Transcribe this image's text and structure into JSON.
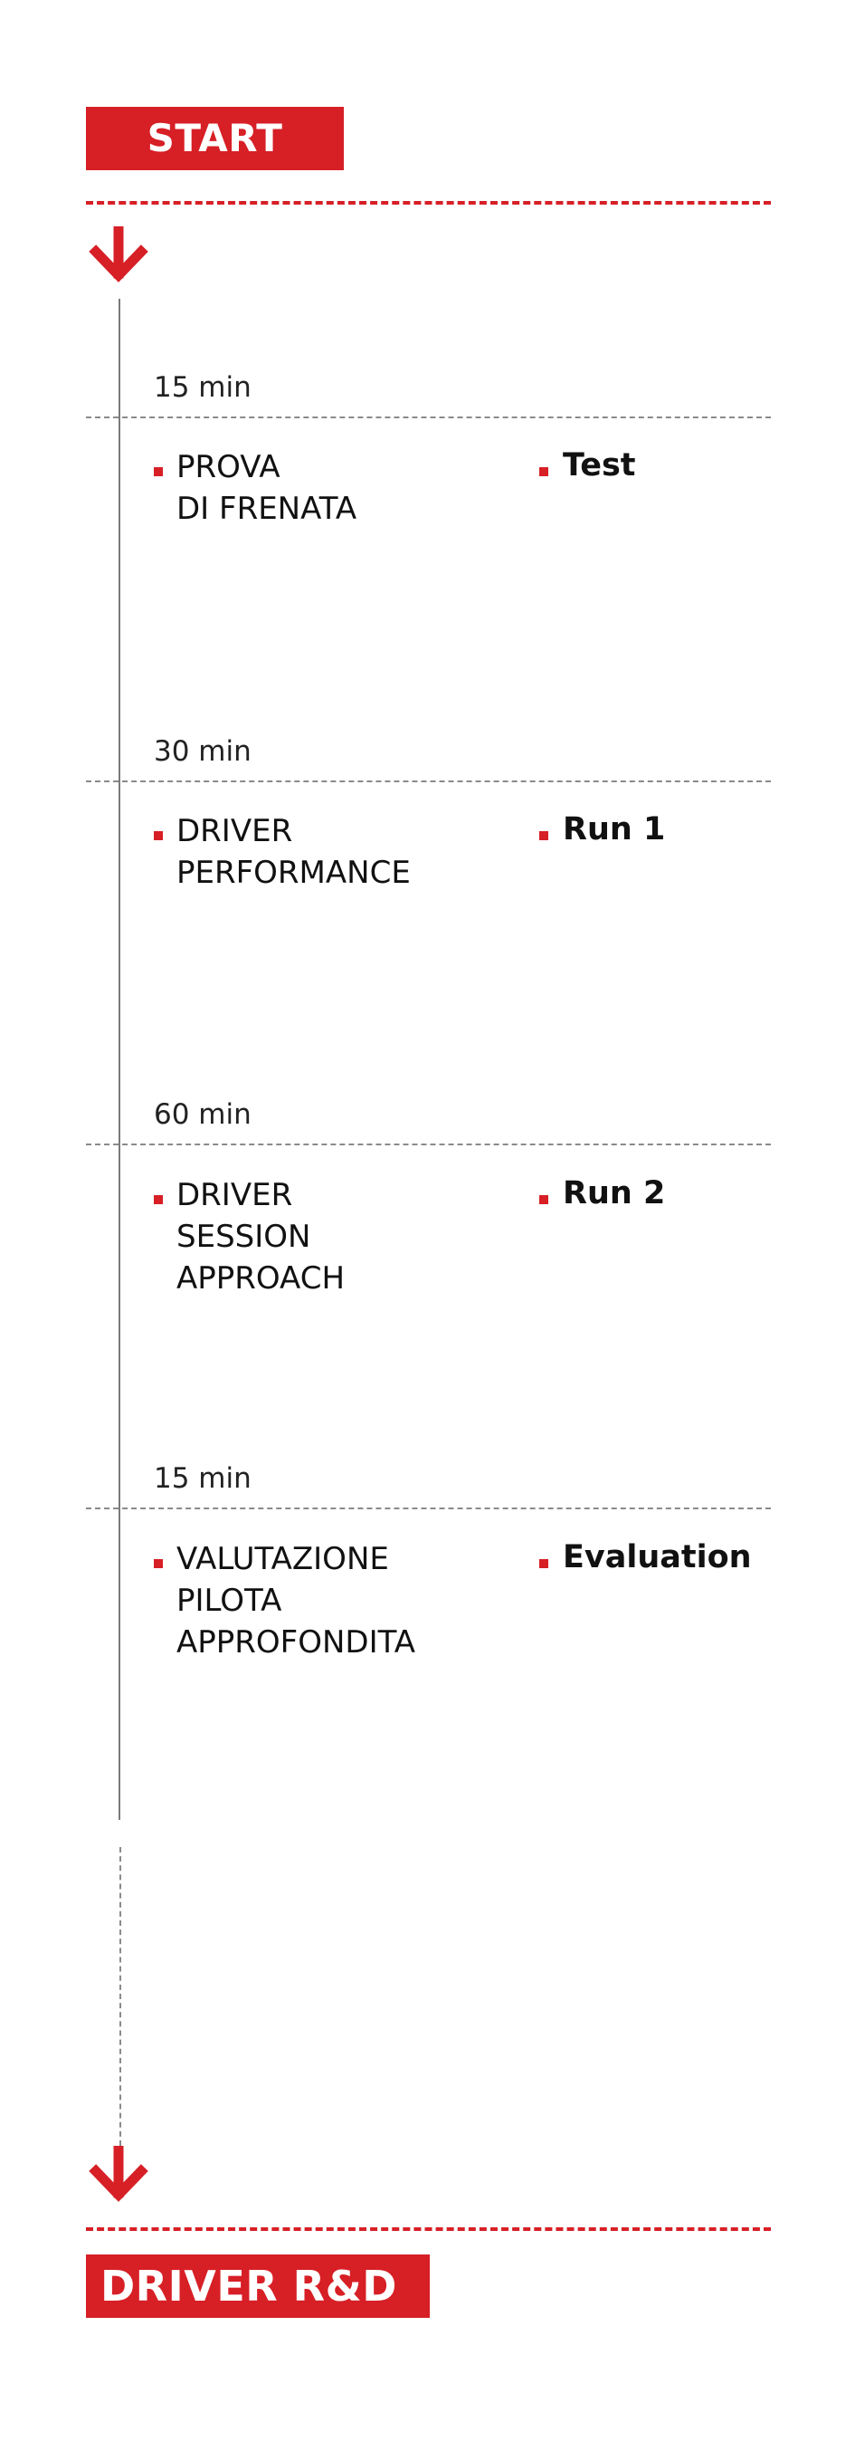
{
  "start_label": "START",
  "end_label": "DRIVER R&D",
  "steps": [
    {
      "time": "15 min",
      "activity": [
        "PROVA",
        "DI FRENATA"
      ],
      "tag": "Test"
    },
    {
      "time": "30 min",
      "activity": [
        "DRIVER",
        "PERFORMANCE"
      ],
      "tag": "Run 1"
    },
    {
      "time": "60 min",
      "activity": [
        "DRIVER",
        "SESSION",
        "APPROACH"
      ],
      "tag": "Run 2"
    },
    {
      "time": "15 min",
      "activity": [
        "VALUTAZIONE",
        "PILOTA",
        "APPROFONDITA"
      ],
      "tag": "Evaluation"
    }
  ],
  "colors": {
    "accent": "#d71f26",
    "rule": "#8a8a8a",
    "text": "#111111"
  },
  "icons": {
    "down_arrow": "arrow-down-icon"
  }
}
